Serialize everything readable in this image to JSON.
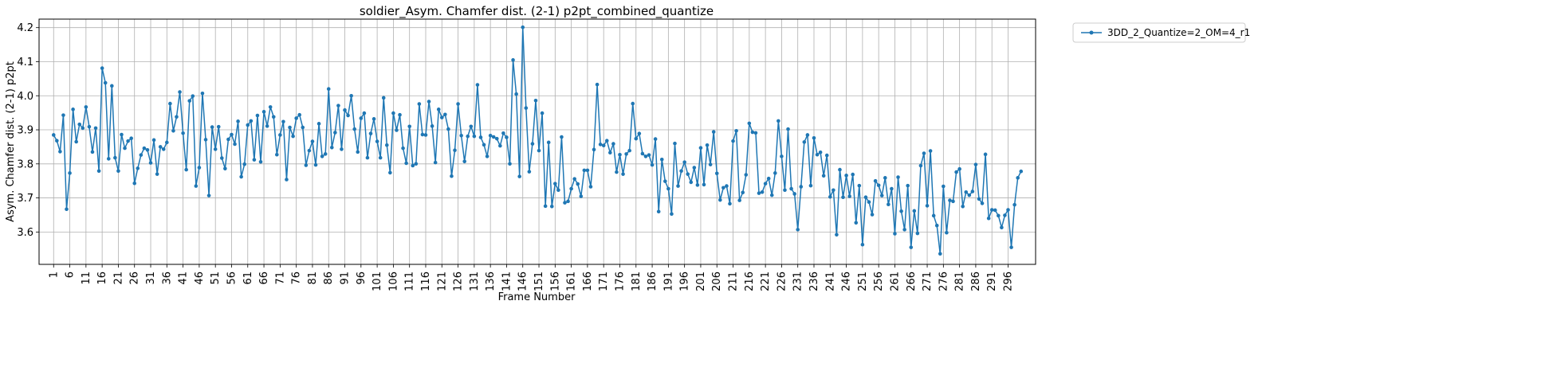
{
  "chart_data": {
    "type": "line",
    "title": "soldier_Asym. Chamfer dist. (2-1) p2pt_combined_quantize",
    "xlabel": "Frame Number",
    "ylabel": "Asym. Chamfer dist. (2-1) p2pt",
    "xlim": [
      -3.5,
      304.5
    ],
    "ylim": [
      3.505,
      4.225
    ],
    "x_ticks": [
      1,
      6,
      11,
      16,
      21,
      26,
      31,
      36,
      41,
      46,
      51,
      56,
      61,
      66,
      71,
      76,
      81,
      86,
      91,
      96,
      101,
      106,
      111,
      116,
      121,
      126,
      131,
      136,
      141,
      146,
      151,
      156,
      161,
      166,
      171,
      176,
      181,
      186,
      191,
      196,
      201,
      206,
      211,
      216,
      221,
      226,
      231,
      236,
      241,
      246,
      251,
      256,
      261,
      266,
      271,
      276,
      281,
      286,
      291,
      296
    ],
    "y_ticks": [
      3.6,
      3.7,
      3.8,
      3.9,
      4.0,
      4.1,
      4.2
    ],
    "y_tick_labels": [
      "3.6",
      "3.7",
      "3.8",
      "3.9",
      "4.0",
      "4.1",
      "4.2"
    ],
    "grid": true,
    "legend_position": "outside-top-right",
    "series": [
      {
        "name": "3DD_2_Quantize=2_OM=4_r1",
        "color": "#1f77b4",
        "x_start": 1,
        "values": [
          3.885,
          3.868,
          3.836,
          3.943,
          3.667,
          3.773,
          3.96,
          3.865,
          3.916,
          3.905,
          3.967,
          3.909,
          3.835,
          3.905,
          3.779,
          4.081,
          4.038,
          3.815,
          4.029,
          3.818,
          3.779,
          3.886,
          3.846,
          3.867,
          3.875,
          3.743,
          3.787,
          3.826,
          3.846,
          3.841,
          3.803,
          3.87,
          3.77,
          3.85,
          3.843,
          3.863,
          3.977,
          3.897,
          3.938,
          4.011,
          3.89,
          3.783,
          3.985,
          3.999,
          3.735,
          3.789,
          4.007,
          3.871,
          3.707,
          3.908,
          3.843,
          3.909,
          3.817,
          3.786,
          3.872,
          3.886,
          3.858,
          3.925,
          3.762,
          3.799,
          3.914,
          3.926,
          3.812,
          3.942,
          3.806,
          3.953,
          3.911,
          3.967,
          3.938,
          3.827,
          3.885,
          3.924,
          3.754,
          3.907,
          3.881,
          3.934,
          3.944,
          3.907,
          3.796,
          3.839,
          3.866,
          3.797,
          3.918,
          3.822,
          3.829,
          4.02,
          3.848,
          3.892,
          3.971,
          3.843,
          3.958,
          3.942,
          4.0,
          3.902,
          3.835,
          3.934,
          3.949,
          3.818,
          3.889,
          3.932,
          3.866,
          3.818,
          3.994,
          3.855,
          3.774,
          3.949,
          3.899,
          3.944,
          3.846,
          3.802,
          3.91,
          3.795,
          3.8,
          3.976,
          3.886,
          3.885,
          3.983,
          3.911,
          3.804,
          3.96,
          3.936,
          3.945,
          3.902,
          3.764,
          3.84,
          3.976,
          3.883,
          3.807,
          3.881,
          3.91,
          3.881,
          4.032,
          3.878,
          3.856,
          3.822,
          3.883,
          3.879,
          3.874,
          3.853,
          3.89,
          3.878,
          3.8,
          4.105,
          4.005,
          3.763,
          4.201,
          3.964,
          3.777,
          3.859,
          3.986,
          3.839,
          3.949,
          3.676,
          3.863,
          3.675,
          3.742,
          3.723,
          3.879,
          3.686,
          3.69,
          3.727,
          3.756,
          3.741,
          3.705,
          3.781,
          3.781,
          3.733,
          3.842,
          4.033,
          3.857,
          3.854,
          3.868,
          3.833,
          3.859,
          3.776,
          3.827,
          3.77,
          3.829,
          3.839,
          3.977,
          3.874,
          3.889,
          3.83,
          3.822,
          3.826,
          3.797,
          3.873,
          3.66,
          3.813,
          3.749,
          3.727,
          3.653,
          3.86,
          3.735,
          3.779,
          3.805,
          3.77,
          3.746,
          3.789,
          3.738,
          3.847,
          3.739,
          3.855,
          3.798,
          3.894,
          3.772,
          3.694,
          3.73,
          3.735,
          3.683,
          3.867,
          3.897,
          3.693,
          3.716,
          3.768,
          3.919,
          3.893,
          3.891,
          3.714,
          3.717,
          3.742,
          3.757,
          3.708,
          3.773,
          3.926,
          3.822,
          3.723,
          3.902,
          3.727,
          3.712,
          3.607,
          3.733,
          3.864,
          3.885,
          3.736,
          3.876,
          3.827,
          3.834,
          3.765,
          3.825,
          3.703,
          3.723,
          3.592,
          3.783,
          3.702,
          3.766,
          3.705,
          3.769,
          3.627,
          3.736,
          3.563,
          3.702,
          3.688,
          3.651,
          3.75,
          3.737,
          3.707,
          3.759,
          3.681,
          3.727,
          3.595,
          3.761,
          3.661,
          3.607,
          3.736,
          3.555,
          3.662,
          3.596,
          3.795,
          3.831,
          3.677,
          3.838,
          3.648,
          3.619,
          3.536,
          3.734,
          3.598,
          3.693,
          3.69,
          3.776,
          3.785,
          3.675,
          3.717,
          3.708,
          3.719,
          3.798,
          3.697,
          3.684,
          3.828,
          3.64,
          3.665,
          3.664,
          3.648,
          3.613,
          3.649,
          3.665,
          3.555,
          3.68,
          3.759,
          3.778
        ]
      }
    ]
  }
}
